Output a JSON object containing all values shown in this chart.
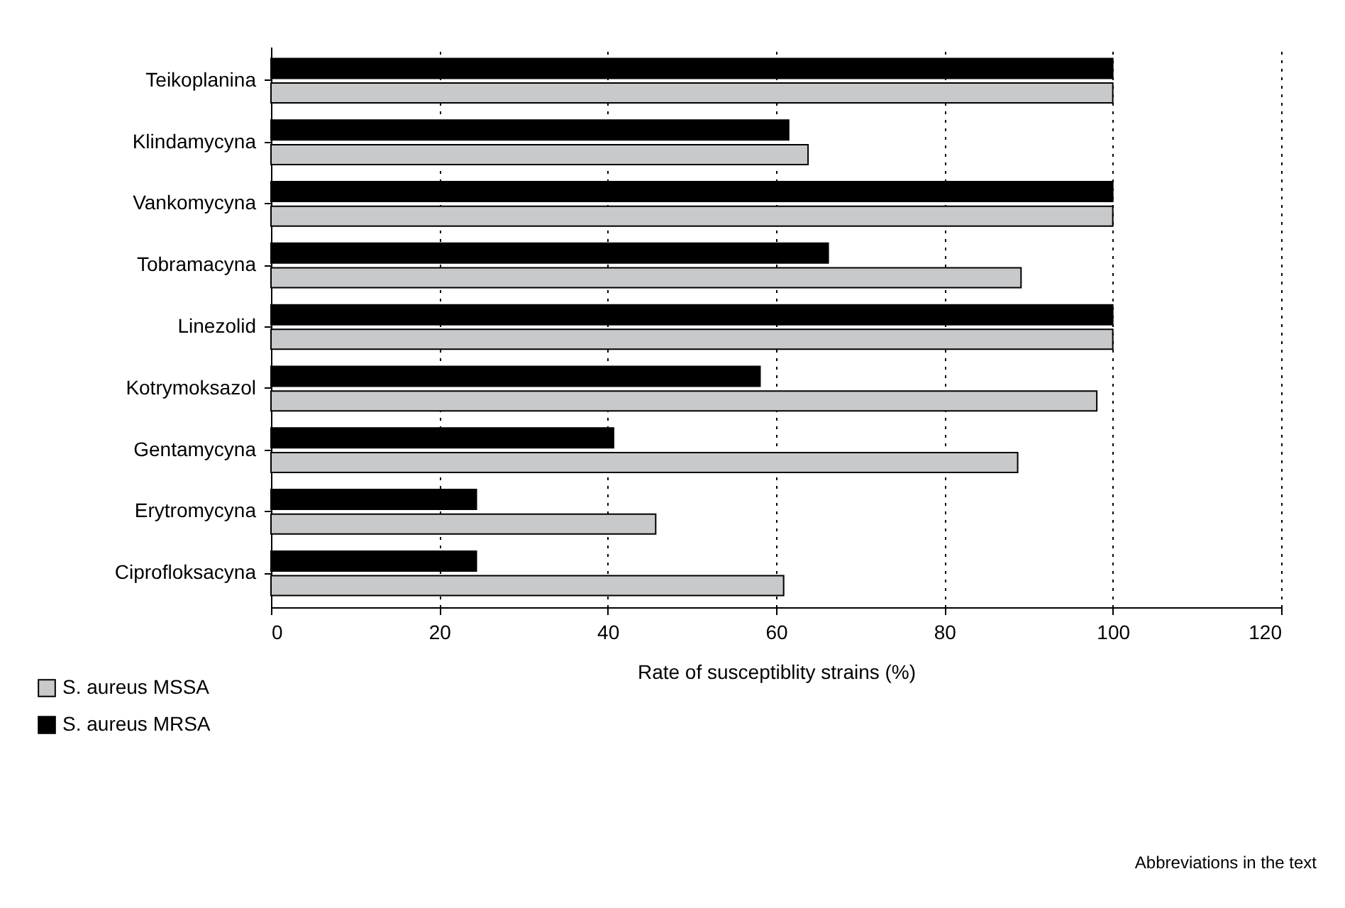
{
  "chart_data": {
    "type": "bar",
    "orientation": "horizontal",
    "xlabel": "Rate of susceptiblity strains (%)",
    "categories": [
      "Teikoplanina",
      "Klindamycyna",
      "Vankomycyna",
      "Tobramacyna",
      "Linezolid",
      "Kotrymoksazol",
      "Gentamycyna",
      "Erytromycyna",
      "Ciprofloksacyna"
    ],
    "series": [
      {
        "name": "S. aureus MSSA",
        "color": "#c8c9cb",
        "values": [
          100,
          63.8,
          100,
          89.1,
          100,
          98.1,
          88.7,
          45.7,
          60.9
        ]
      },
      {
        "name": "S. aureus MRSA",
        "color": "#000000",
        "values": [
          100,
          61.5,
          100,
          66.2,
          100,
          58.1,
          40.7,
          24.4,
          24.4
        ]
      }
    ],
    "xlim": [
      0,
      120
    ],
    "xticks": [
      0,
      20,
      40,
      60,
      80,
      100,
      120
    ],
    "grid": "x",
    "legend": "bottom left",
    "annotations": [
      "Abbreviations in the text"
    ]
  }
}
